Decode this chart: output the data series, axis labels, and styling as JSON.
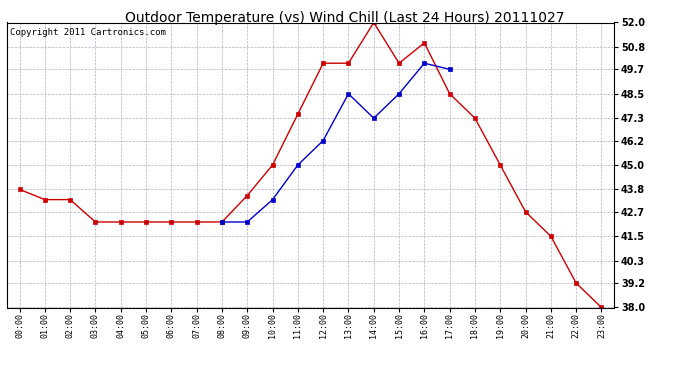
{
  "title": "Outdoor Temperature (vs) Wind Chill (Last 24 Hours) 20111027",
  "copyright": "Copyright 2011 Cartronics.com",
  "x_labels": [
    "00:00",
    "01:00",
    "02:00",
    "03:00",
    "04:00",
    "05:00",
    "06:00",
    "07:00",
    "08:00",
    "09:00",
    "10:00",
    "11:00",
    "12:00",
    "13:00",
    "14:00",
    "15:00",
    "16:00",
    "17:00",
    "18:00",
    "19:00",
    "20:00",
    "21:00",
    "22:00",
    "23:00"
  ],
  "temp_red": [
    43.8,
    43.3,
    43.3,
    42.2,
    42.2,
    42.2,
    42.2,
    42.2,
    42.2,
    43.5,
    45.0,
    47.5,
    50.0,
    50.0,
    52.0,
    50.0,
    51.0,
    48.5,
    47.3,
    45.0,
    42.7,
    41.5,
    39.2,
    38.0
  ],
  "wind_blue": [
    null,
    null,
    null,
    null,
    null,
    null,
    null,
    null,
    42.2,
    42.2,
    43.3,
    45.0,
    46.2,
    48.5,
    47.3,
    48.5,
    50.0,
    49.7,
    null,
    null,
    null,
    null,
    null,
    null
  ],
  "ylim_min": 38.0,
  "ylim_max": 52.0,
  "yticks": [
    38.0,
    39.2,
    40.3,
    41.5,
    42.7,
    43.8,
    45.0,
    46.2,
    47.3,
    48.5,
    49.7,
    50.8,
    52.0
  ],
  "red_color": "#cc0000",
  "blue_color": "#0000cc",
  "grid_color": "#b0b0c8",
  "bg_color": "#ffffff",
  "title_fontsize": 10,
  "copyright_fontsize": 6.5,
  "tick_fontsize": 7,
  "xtick_fontsize": 6
}
